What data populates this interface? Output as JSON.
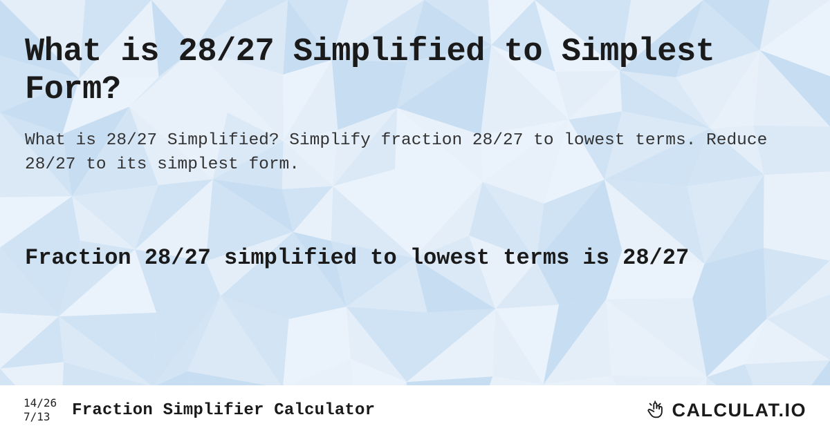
{
  "page": {
    "title": "What is 28/27 Simplified to Simplest Form?",
    "description": "What is 28/27 Simplified? Simplify fraction 28/27 to lowest terms. Reduce 28/27 to its simplest form.",
    "result_heading": "Fraction 28/27 simplified to lowest terms is 28/27"
  },
  "footer": {
    "mini_fraction_top": "14/26",
    "mini_fraction_bottom": "7/13",
    "app_title": "Fraction Simplifier Calculator",
    "brand": "CALCULAT.IO"
  },
  "style": {
    "bg_base": "#eaf2fb",
    "triangle_colors": [
      "#dbe9f7",
      "#cfe3f5",
      "#e3eef9",
      "#d3e5f5",
      "#c7ddf2",
      "#eaf2fb",
      "#e8f1fa"
    ],
    "title_color": "#1a1a1a",
    "desc_color": "#333333",
    "result_color": "#1a1a1a",
    "footer_bg": "#ffffff",
    "brand_icon_color": "#1a1a1a",
    "title_fontsize": 47,
    "desc_fontsize": 24.5,
    "result_fontsize": 32,
    "footer_title_fontsize": 24,
    "brand_fontsize": 27,
    "mini_frac_fontsize": 16
  }
}
